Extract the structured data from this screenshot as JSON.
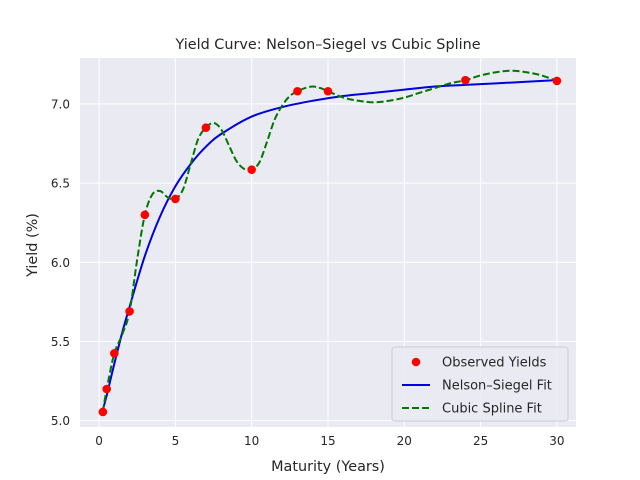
{
  "chart_data": {
    "type": "line",
    "title": "Yield Curve: Nelson–Siegel vs Cubic Spline",
    "xlabel": "Maturity (Years)",
    "ylabel": "Yield (%)",
    "xlim": [
      -1.25,
      31.25
    ],
    "ylim": [
      4.96,
      7.29
    ],
    "xticks": [
      0,
      5,
      10,
      15,
      20,
      25,
      30
    ],
    "yticks": [
      5.0,
      5.5,
      6.0,
      6.5,
      7.0
    ],
    "grid": true,
    "legend_position": "lower-right",
    "background": "#eaeaf2",
    "series": [
      {
        "name": "Observed Yields",
        "kind": "scatter",
        "color": "#ff0000",
        "x": [
          0.25,
          0.5,
          1,
          2,
          3,
          5,
          7,
          10,
          13,
          15,
          24,
          30
        ],
        "y": [
          5.055,
          5.2,
          5.425,
          5.69,
          6.3,
          6.4,
          6.85,
          6.585,
          7.08,
          7.08,
          7.15,
          7.145
        ]
      },
      {
        "name": "Nelson–Siegel Fit",
        "kind": "line",
        "color": "#0000dd",
        "style": "solid",
        "x": [
          0.25,
          0.5,
          1,
          1.5,
          2,
          3,
          4,
          5,
          6,
          7,
          8,
          10,
          12,
          14,
          16,
          18,
          20,
          22,
          24,
          26,
          28,
          30
        ],
        "y": [
          5.07,
          5.16,
          5.36,
          5.55,
          5.72,
          6.04,
          6.29,
          6.48,
          6.62,
          6.73,
          6.81,
          6.92,
          6.98,
          7.02,
          7.05,
          7.07,
          7.09,
          7.11,
          7.12,
          7.13,
          7.14,
          7.15
        ]
      },
      {
        "name": "Cubic Spline Fit",
        "kind": "line",
        "color": "#007700",
        "style": "dashed",
        "x": [
          0.25,
          0.5,
          1,
          1.5,
          2,
          2.5,
          3,
          3.5,
          4,
          4.5,
          5,
          5.5,
          6,
          6.5,
          7,
          7.5,
          8,
          8.5,
          9,
          9.5,
          10,
          10.5,
          11,
          11.5,
          12,
          12.5,
          13,
          13.5,
          14,
          14.5,
          15,
          16,
          17,
          18,
          19,
          20,
          21,
          22,
          23,
          24,
          25,
          26,
          27,
          28,
          29,
          30
        ],
        "y": [
          5.055,
          5.2,
          5.425,
          5.54,
          5.69,
          6.02,
          6.3,
          6.43,
          6.45,
          6.41,
          6.4,
          6.46,
          6.62,
          6.78,
          6.85,
          6.88,
          6.84,
          6.74,
          6.64,
          6.59,
          6.585,
          6.63,
          6.76,
          6.9,
          6.99,
          7.05,
          7.08,
          7.1,
          7.11,
          7.1,
          7.08,
          7.04,
          7.02,
          7.01,
          7.02,
          7.04,
          7.07,
          7.1,
          7.13,
          7.15,
          7.18,
          7.2,
          7.21,
          7.2,
          7.18,
          7.145
        ]
      }
    ]
  }
}
